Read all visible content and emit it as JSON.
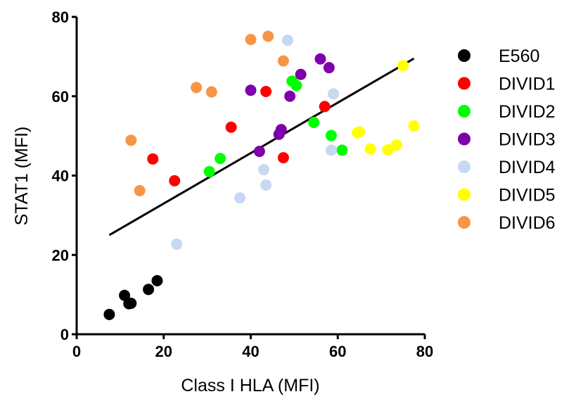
{
  "chart_data": {
    "type": "scatter",
    "title": "",
    "xlabel": "Class I HLA (MFI)",
    "ylabel": "STAT1 (MFI)",
    "xlim": [
      0,
      80
    ],
    "ylim": [
      0,
      80
    ],
    "xticks": [
      0,
      20,
      40,
      60,
      80
    ],
    "yticks": [
      0,
      20,
      40,
      60,
      80
    ],
    "grid": false,
    "legend_position": "right",
    "regression_line": {
      "color": "#000000",
      "points": [
        [
          7.5,
          25
        ],
        [
          77.5,
          69.5
        ]
      ]
    },
    "series": [
      {
        "name": "E560",
        "color": "#000000",
        "points": [
          [
            7.5,
            5
          ],
          [
            11,
            9.8
          ],
          [
            12,
            7.7
          ],
          [
            12.5,
            7.8
          ],
          [
            16.5,
            11.3
          ],
          [
            18.5,
            13.5
          ]
        ]
      },
      {
        "name": "DIVID1",
        "color": "#ff0000",
        "points": [
          [
            17.5,
            44.2
          ],
          [
            22.5,
            38.7
          ],
          [
            35.5,
            52.2
          ],
          [
            43.5,
            61.2
          ],
          [
            47.5,
            44.5
          ],
          [
            57,
            57.4
          ]
        ]
      },
      {
        "name": "DIVID2",
        "color": "#00ff00",
        "points": [
          [
            30.5,
            41
          ],
          [
            33,
            44.3
          ],
          [
            49.5,
            63.8
          ],
          [
            50.5,
            62.7
          ],
          [
            54.5,
            53.4
          ],
          [
            58.5,
            50.1
          ],
          [
            61,
            46.4
          ]
        ]
      },
      {
        "name": "DIVID3",
        "color": "#7f00aa",
        "points": [
          [
            40,
            61.5
          ],
          [
            42,
            46.1
          ],
          [
            46.5,
            50.4
          ],
          [
            47,
            51.6
          ],
          [
            49,
            60
          ],
          [
            51.5,
            65.5
          ],
          [
            56,
            69.4
          ],
          [
            58,
            67.2
          ]
        ]
      },
      {
        "name": "DIVID4",
        "color": "#c6d9f1",
        "points": [
          [
            23,
            22.7
          ],
          [
            37.5,
            34.4
          ],
          [
            43,
            41.5
          ],
          [
            43.5,
            37.6
          ],
          [
            48.5,
            74.1
          ],
          [
            58.5,
            46.4
          ],
          [
            59,
            60.6
          ]
        ]
      },
      {
        "name": "DIVID5",
        "color": "#ffff00",
        "points": [
          [
            64.5,
            50.8
          ],
          [
            65,
            51
          ],
          [
            67.5,
            46.7
          ],
          [
            71.5,
            46.5
          ],
          [
            73.5,
            47.7
          ],
          [
            75,
            67.7
          ],
          [
            77.5,
            52.5
          ]
        ]
      },
      {
        "name": "DIVID6",
        "color": "#f79646",
        "points": [
          [
            12.5,
            48.9
          ],
          [
            14.5,
            36.2
          ],
          [
            27.5,
            62.2
          ],
          [
            31,
            61.1
          ],
          [
            40,
            74.3
          ],
          [
            44,
            75.1
          ],
          [
            47.5,
            68.9
          ]
        ]
      }
    ]
  }
}
